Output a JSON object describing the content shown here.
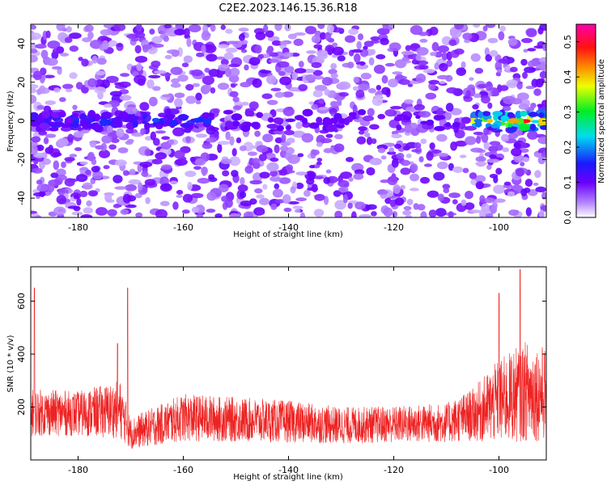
{
  "title": "C2E2.2023.146.15.36.R18",
  "chart_data": [
    {
      "type": "heatmap",
      "xlabel": "Height of straight line (km)",
      "ylabel": "Frequency (Hz)",
      "xlim": [
        -189,
        -91
      ],
      "ylim": [
        -50,
        50
      ],
      "x_ticks": [
        -180,
        -160,
        -140,
        -120,
        -100
      ],
      "y_ticks": [
        -40,
        -20,
        0,
        20,
        40
      ],
      "colorbar": {
        "label": "Normalized spectral amplitude",
        "range": [
          0.0,
          0.55
        ],
        "ticks": [
          0.0,
          0.1,
          0.2,
          0.3,
          0.4,
          0.5
        ],
        "colormap": "white-purple-blue-cyan-green-yellow-red-magenta"
      },
      "features": [
        {
          "x_range": [
            -189,
            -155
          ],
          "frequency": 0,
          "amplitude": 0.15
        },
        {
          "x_range": [
            -105,
            -91
          ],
          "frequency": 0,
          "amplitude": 0.35
        },
        {
          "x": -95,
          "frequency": 0,
          "amplitude": 0.45
        }
      ]
    },
    {
      "type": "line",
      "xlabel": "Height of straight line (km)",
      "ylabel": "SNR (10 * v/v)",
      "xlim": [
        -189,
        -91
      ],
      "ylim": [
        0,
        730
      ],
      "x_ticks": [
        -180,
        -160,
        -140,
        -120,
        -100
      ],
      "y_ticks": [
        200,
        400,
        600
      ],
      "series": [
        {
          "color": "#ee2222",
          "envelope": [
            {
              "x": -189,
              "mean": 180,
              "spread": 90
            },
            {
              "x": -180,
              "mean": 175,
              "spread": 85
            },
            {
              "x": -172,
              "mean": 190,
              "spread": 110
            },
            {
              "x": -170,
              "mean": 100,
              "spread": 60
            },
            {
              "x": -160,
              "mean": 160,
              "spread": 90
            },
            {
              "x": -140,
              "mean": 145,
              "spread": 80
            },
            {
              "x": -130,
              "mean": 130,
              "spread": 70
            },
            {
              "x": -120,
              "mean": 135,
              "spread": 70
            },
            {
              "x": -110,
              "mean": 140,
              "spread": 75
            },
            {
              "x": -105,
              "mean": 170,
              "spread": 100
            },
            {
              "x": -100,
              "mean": 220,
              "spread": 160
            },
            {
              "x": -95,
              "mean": 260,
              "spread": 190
            },
            {
              "x": -91,
              "mean": 250,
              "spread": 180
            }
          ],
          "peaks": [
            {
              "x": -188.3,
              "y": 650
            },
            {
              "x": -170.6,
              "y": 650
            },
            {
              "x": -172.5,
              "y": 440
            },
            {
              "x": -96,
              "y": 720
            },
            {
              "x": -100,
              "y": 630
            }
          ]
        }
      ]
    }
  ]
}
